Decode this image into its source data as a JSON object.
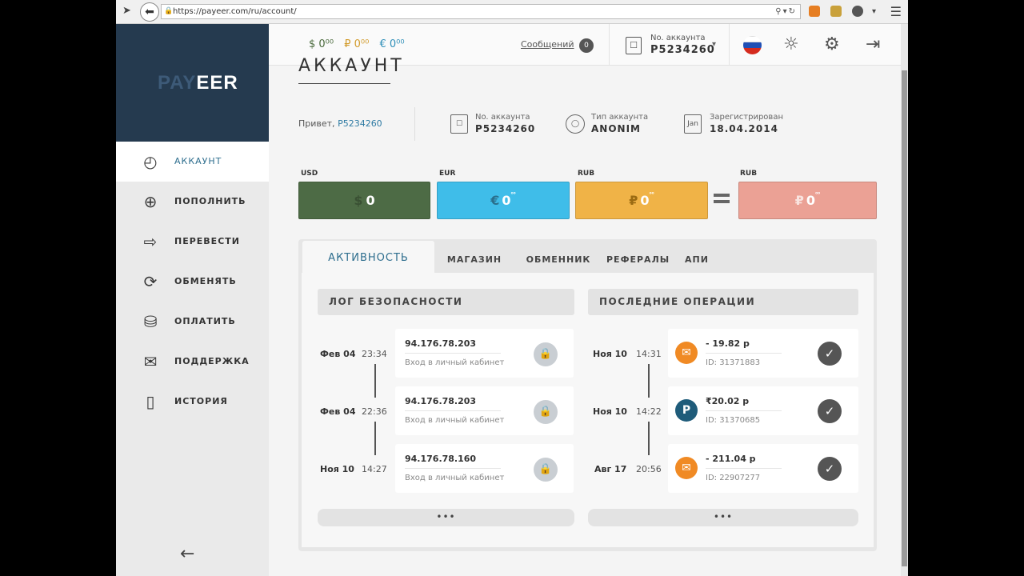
{
  "browser": {
    "url": "https://payeer.com/ru/account/"
  },
  "logo": {
    "part1": "PAY",
    "part2": "EER"
  },
  "sidebar": {
    "items": [
      {
        "label": "АККАУНТ",
        "icon": "gauge-icon"
      },
      {
        "label": "ПОПОЛНИТЬ",
        "icon": "plus-circle-icon"
      },
      {
        "label": "ПЕРЕВЕСТИ",
        "icon": "arrow-right-icon"
      },
      {
        "label": "ОБМЕНЯТЬ",
        "icon": "refresh-icon"
      },
      {
        "label": "ОПЛАТИТЬ",
        "icon": "coins-icon"
      },
      {
        "label": "ПОДДЕРЖКА",
        "icon": "envelope-icon"
      },
      {
        "label": "ИСТОРИЯ",
        "icon": "book-icon"
      }
    ],
    "collapse": "←"
  },
  "header": {
    "balances": {
      "usd": "$ 0⁰⁰",
      "rub": "₽ 0⁰⁰",
      "eur": "€ 0⁰⁰"
    },
    "messages_label": "Сообщений",
    "messages_count": "0",
    "account_label": "No. аккаунта",
    "account_number": "P5234260"
  },
  "main": {
    "title": "АККАУНТ",
    "greeting": "Привет,",
    "greeting_user": "P5234260",
    "info": [
      {
        "label": "No. аккаунта",
        "value": "P5234260",
        "icon": "id-card-icon"
      },
      {
        "label": "Тип аккаунта",
        "value": "ANONIM",
        "icon": "user-icon"
      },
      {
        "label": "Зарегистрирован",
        "value": "18.04.2014",
        "icon": "calendar-icon",
        "icon_text": "Jan"
      }
    ],
    "wallets": [
      {
        "currency": "USD",
        "symbol": "$",
        "amount": "0",
        "cents": "⁰⁰",
        "color": "#4d6b45"
      },
      {
        "currency": "EUR",
        "symbol": "€",
        "amount": "0",
        "cents": "⁰⁰",
        "color": "#3fbde9"
      },
      {
        "currency": "RUB",
        "symbol": "₽",
        "amount": "0",
        "cents": "⁰⁰",
        "color": "#f0b347"
      },
      {
        "currency": "RUB",
        "symbol": "₽",
        "amount": "0",
        "cents": "⁰⁰",
        "color": "#eba195"
      }
    ]
  },
  "activity": {
    "tabs": [
      "АКТИВНОСТЬ",
      "МАГАЗИН",
      "ОБМЕННИК",
      "РЕФЕРАЛЫ",
      "АПИ"
    ],
    "security_title": "ЛОГ БЕЗОПАСНОСТИ",
    "operations_title": "ПОСЛЕДНИЕ ОПЕРАЦИИ",
    "security_log": [
      {
        "date": "Фев 04",
        "time": "23:34",
        "ip": "94.176.78.203",
        "action": "Вход в личный кабинет"
      },
      {
        "date": "Фев 04",
        "time": "22:36",
        "ip": "94.176.78.203",
        "action": "Вход в личный кабинет"
      },
      {
        "date": "Ноя 10",
        "time": "14:27",
        "ip": "94.176.78.160",
        "action": "Вход в личный кабинет"
      }
    ],
    "operations": [
      {
        "date": "Ноя 10",
        "time": "14:31",
        "amount": "- 19.82 р",
        "id": "ID: 31371883",
        "icon": "orange-envelope-icon",
        "icon_color": "#f08a24",
        "glyph": "✉"
      },
      {
        "date": "Ноя 10",
        "time": "14:22",
        "amount": "₹20.02 р",
        "id": "ID: 31370685",
        "icon": "payeer-p-icon",
        "icon_color": "#1f5c7a",
        "glyph": "P"
      },
      {
        "date": "Авг 17",
        "time": "20:56",
        "amount": "- 211.04 р",
        "id": "ID: 22907277",
        "icon": "orange-envelope-icon",
        "icon_color": "#f08a24",
        "glyph": "✉"
      }
    ],
    "more": "•••"
  }
}
